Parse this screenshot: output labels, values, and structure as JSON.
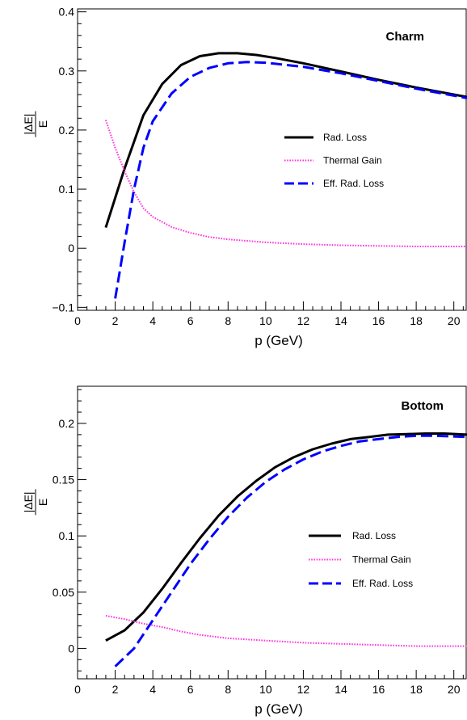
{
  "chart_data": [
    {
      "type": "line",
      "title": "Charm",
      "xlabel": "p (GeV)",
      "ylabel_numerator": "|ΔE|",
      "ylabel_denominator": "E",
      "xlim": [
        0,
        20.7
      ],
      "ylim": [
        -0.105,
        0.405
      ],
      "xticks": [
        0,
        2,
        4,
        6,
        8,
        10,
        12,
        14,
        16,
        18,
        20
      ],
      "yticks": [
        -0.1,
        0,
        0.1,
        0.2,
        0.3,
        0.4
      ],
      "ytick_labels": [
        "−0.1",
        "0",
        "0.1",
        "0.2",
        "0.3",
        "0.4"
      ],
      "grid": false,
      "legend_position": "right",
      "series": [
        {
          "name": "Rad. Loss",
          "color": "#000000",
          "style": "solid",
          "x": [
            1.5,
            2.5,
            3.5,
            4.5,
            5.5,
            6.5,
            7.5,
            8.5,
            9.5,
            10.5,
            12,
            14,
            16,
            18,
            20.7
          ],
          "y": [
            0.035,
            0.135,
            0.225,
            0.278,
            0.31,
            0.325,
            0.33,
            0.33,
            0.327,
            0.322,
            0.313,
            0.299,
            0.285,
            0.272,
            0.256
          ]
        },
        {
          "name": "Thermal Gain",
          "color": "#ff33dd",
          "style": "dotted",
          "x": [
            1.5,
            2,
            2.5,
            3,
            3.5,
            4,
            5,
            6,
            7,
            8,
            10,
            12,
            14,
            16,
            18,
            20.7
          ],
          "y": [
            0.217,
            0.17,
            0.13,
            0.095,
            0.068,
            0.053,
            0.036,
            0.026,
            0.019,
            0.015,
            0.01,
            0.007,
            0.005,
            0.004,
            0.003,
            0.003
          ]
        },
        {
          "name": "Eff. Rad. Loss",
          "color": "#0000ff",
          "style": "dashed",
          "x": [
            2,
            2.5,
            3,
            3.5,
            4,
            5,
            6,
            7,
            8,
            9,
            10,
            12,
            14,
            16,
            18,
            20.7
          ],
          "y": [
            -0.085,
            0.01,
            0.1,
            0.17,
            0.215,
            0.262,
            0.29,
            0.305,
            0.313,
            0.315,
            0.314,
            0.307,
            0.296,
            0.283,
            0.27,
            0.254
          ]
        }
      ]
    },
    {
      "type": "line",
      "title": "Bottom",
      "xlabel": "p (GeV)",
      "ylabel_numerator": "|ΔE|",
      "ylabel_denominator": "E",
      "xlim": [
        0,
        20.7
      ],
      "ylim": [
        -0.027,
        0.233
      ],
      "xticks": [
        0,
        2,
        4,
        6,
        8,
        10,
        12,
        14,
        16,
        18,
        20
      ],
      "yticks": [
        0,
        0.05,
        0.1,
        0.15,
        0.2
      ],
      "ytick_labels": [
        "0",
        "0.05",
        "0.1",
        "0.15",
        "0.2"
      ],
      "grid": false,
      "legend_position": "right",
      "series": [
        {
          "name": "Rad. Loss",
          "color": "#000000",
          "style": "solid",
          "x": [
            1.5,
            2.5,
            3.5,
            4.5,
            5.5,
            6.5,
            7.5,
            8.5,
            9.5,
            10.5,
            11.5,
            12.5,
            13.5,
            14.5,
            15.5,
            16.5,
            17.5,
            18.5,
            19.5,
            20.7
          ],
          "y": [
            0.007,
            0.016,
            0.032,
            0.053,
            0.076,
            0.098,
            0.118,
            0.135,
            0.149,
            0.161,
            0.17,
            0.177,
            0.182,
            0.186,
            0.188,
            0.19,
            0.1905,
            0.191,
            0.191,
            0.19
          ]
        },
        {
          "name": "Thermal Gain",
          "color": "#ff33dd",
          "style": "dotted",
          "x": [
            1.5,
            2.5,
            3.5,
            4.5,
            5.5,
            6.5,
            8,
            10,
            12,
            14,
            16,
            18,
            20.7
          ],
          "y": [
            0.029,
            0.026,
            0.022,
            0.019,
            0.015,
            0.012,
            0.009,
            0.007,
            0.005,
            0.004,
            0.003,
            0.002,
            0.002
          ]
        },
        {
          "name": "Eff. Rad. Loss",
          "color": "#0000ff",
          "style": "dashed",
          "x": [
            2,
            3,
            4,
            5,
            6,
            7,
            8,
            9,
            10,
            11,
            12,
            13,
            14,
            15,
            16,
            17,
            18,
            19,
            20.7
          ],
          "y": [
            -0.016,
            0.0,
            0.025,
            0.05,
            0.075,
            0.097,
            0.117,
            0.134,
            0.148,
            0.159,
            0.168,
            0.175,
            0.18,
            0.184,
            0.186,
            0.188,
            0.189,
            0.189,
            0.188
          ]
        }
      ]
    }
  ]
}
